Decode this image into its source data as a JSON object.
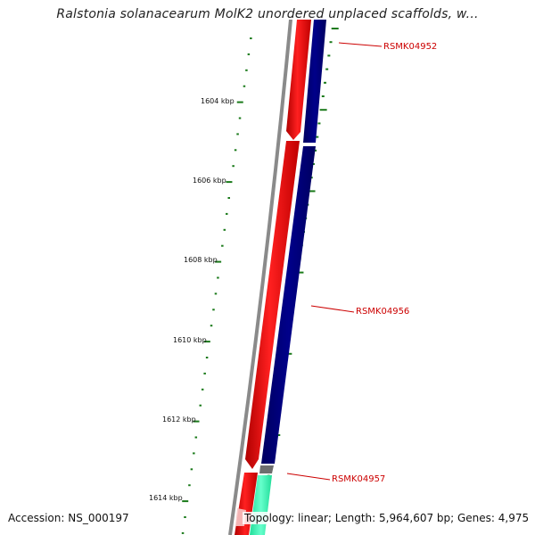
{
  "title": "Ralstonia solanacearum MolK2 unordered unplaced scaffolds, w...",
  "accession_label": "Accession: NS_000197",
  "topology_label": "Topology: linear; Length: 5,964,607 bp; Genes: 4,975",
  "scale_ticks": [
    "1604 kbp",
    "1606 kbp",
    "1608 kbp",
    "1610 kbp",
    "1612 kbp",
    "1614 kbp"
  ],
  "gene_labels": [
    "RSMK04952",
    "RSMK04956",
    "RSMK04957"
  ],
  "colors": {
    "tick": "#1a7a1a",
    "forward_track": "#ff0000",
    "reverse_track": "#00007f",
    "backbone": "#888888",
    "label": "#cc0000",
    "small_feature": "#777777",
    "aqua_feature": "#33ffbb"
  }
}
